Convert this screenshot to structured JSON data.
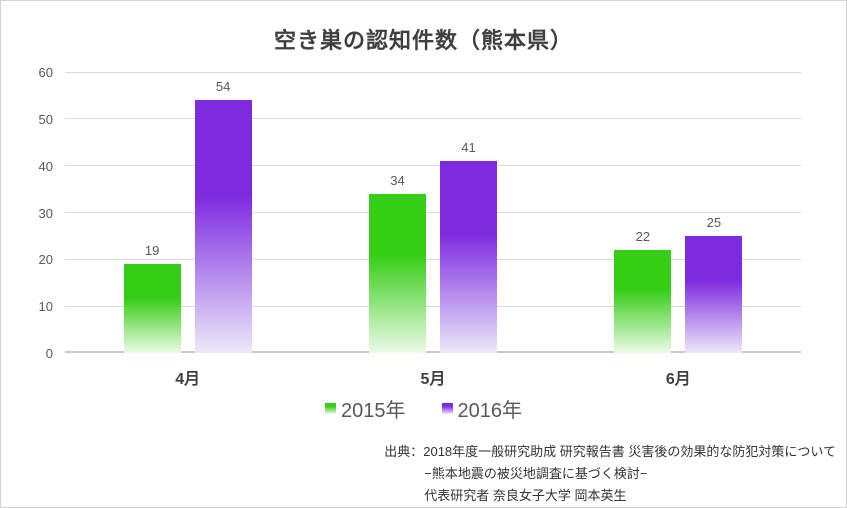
{
  "title": "空き巣の認知件数（熊本県）",
  "chart_data": {
    "type": "bar",
    "categories": [
      "4月",
      "5月",
      "6月"
    ],
    "series": [
      {
        "name": "2015年",
        "values": [
          19,
          34,
          22
        ],
        "color_top": "#35cd15",
        "color_bottom": "#ecfbe7"
      },
      {
        "name": "2016年",
        "values": [
          54,
          41,
          25
        ],
        "color_top": "#7e2be0",
        "color_bottom": "#ece9f9"
      }
    ],
    "title": "空き巣の認知件数（熊本県）",
    "xlabel": "",
    "ylabel": "",
    "ylim": [
      0,
      60
    ],
    "ytick_step": 10,
    "yticks": [
      0,
      10,
      20,
      30,
      40,
      50,
      60
    ],
    "grid": true,
    "legend_position": "bottom",
    "data_labels": true
  },
  "source": {
    "line1": "出典：2018年度一般研究助成 研究報告書 災害後の効果的な防犯対策について",
    "line2": "−熊本地震の被災地調査に基づく検討−",
    "line3": "代表研究者 奈良女子大学 岡本英生"
  },
  "colors": {
    "series_2015_top": "#35cd15",
    "series_2015_bottom": "#ecfbe7",
    "series_2016_top": "#7e2be0",
    "series_2016_bottom": "#ece9f9",
    "gridline": "#dadada",
    "axis_line": "#c9c9c9",
    "title_text": "#3f3f3f",
    "axis_text": "#595959",
    "category_text": "#404040",
    "source_text": "#333333",
    "frame_border": "#d2d2d2",
    "background": "#ffffff"
  }
}
